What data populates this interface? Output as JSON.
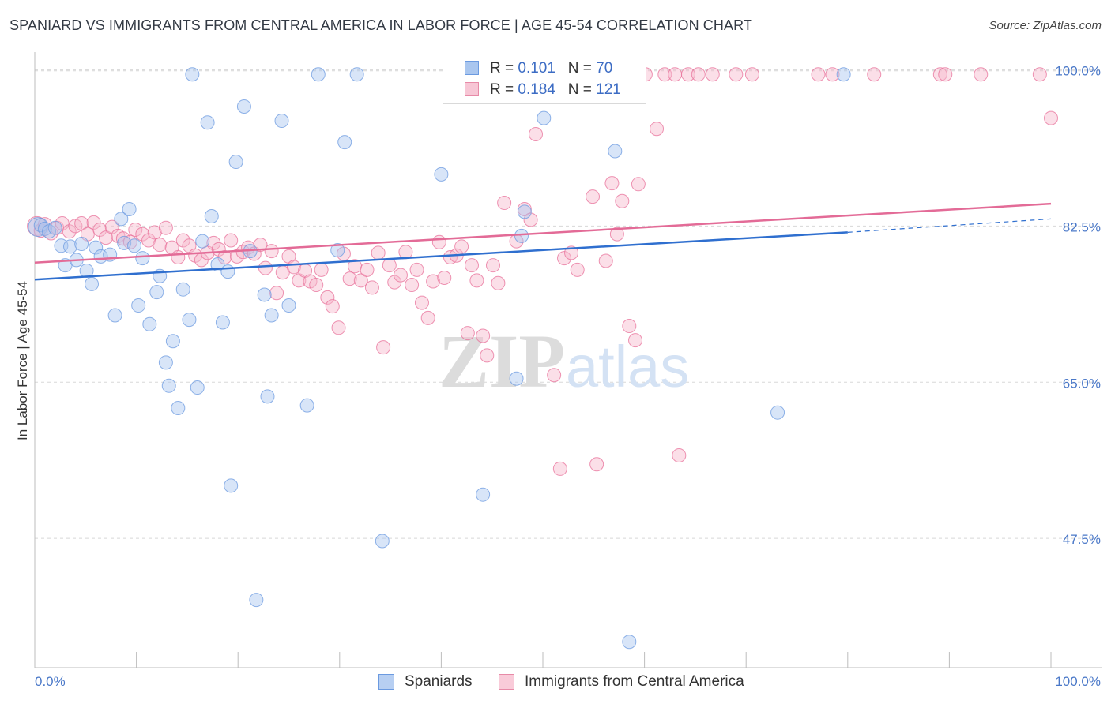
{
  "title": "SPANIARD VS IMMIGRANTS FROM CENTRAL AMERICA IN LABOR FORCE | AGE 45-54 CORRELATION CHART",
  "source": "Source: ZipAtlas.com",
  "legend": {
    "r_label": "R =",
    "n_label": "N =",
    "rows": [
      {
        "name": "Spaniards",
        "r": "0.101",
        "n": "70",
        "color": "#a9c6ef",
        "border": "#6b9ae0"
      },
      {
        "name": "Immigrants from Central America",
        "r": "0.184",
        "n": "121",
        "color": "#f7b8cc",
        "border": "#e78aa7"
      }
    ]
  },
  "chart_data": {
    "type": "scatter",
    "title": "SPANIARD VS IMMIGRANTS FROM CENTRAL AMERICA IN LABOR FORCE | AGE 45-54 CORRELATION CHART",
    "xlabel": "",
    "ylabel": "In Labor Force | Age 45-54",
    "xlim": [
      0,
      100
    ],
    "ylim": [
      33,
      102
    ],
    "x_tick_labels": [
      "0.0%",
      "100.0%"
    ],
    "y_ticks": [
      47.5,
      65.0,
      82.5,
      100.0
    ],
    "y_tick_labels": [
      "47.5%",
      "65.0%",
      "82.5%",
      "100.0%"
    ],
    "grid": true,
    "legend_position": "top-center",
    "watermark": "ZIPatlas",
    "series": [
      {
        "name": "Spaniards",
        "color": "#6b9ae0",
        "fill": "#a9c6ef",
        "trend": {
          "x": [
            0,
            80
          ],
          "y": [
            76.5,
            81.8
          ],
          "extend_to": [
            100,
            83.3
          ]
        },
        "points": [
          [
            0.3,
            82.4
          ],
          [
            0.6,
            82.6
          ],
          [
            1.0,
            82.2
          ],
          [
            1.4,
            81.9
          ],
          [
            2.0,
            82.3
          ],
          [
            2.6,
            80.3
          ],
          [
            3.0,
            78.1
          ],
          [
            3.5,
            80.2
          ],
          [
            4.1,
            78.7
          ],
          [
            4.6,
            80.5
          ],
          [
            5.1,
            77.5
          ],
          [
            5.6,
            76.0
          ],
          [
            6.0,
            80.1
          ],
          [
            6.5,
            79.1
          ],
          [
            7.4,
            79.3
          ],
          [
            7.9,
            72.5
          ],
          [
            8.5,
            83.3
          ],
          [
            8.8,
            80.6
          ],
          [
            9.3,
            84.4
          ],
          [
            9.8,
            80.3
          ],
          [
            10.2,
            73.6
          ],
          [
            10.6,
            78.9
          ],
          [
            11.3,
            71.5
          ],
          [
            12.0,
            75.1
          ],
          [
            12.3,
            76.9
          ],
          [
            12.9,
            67.2
          ],
          [
            13.2,
            64.6
          ],
          [
            13.6,
            69.6
          ],
          [
            14.1,
            62.1
          ],
          [
            14.6,
            75.4
          ],
          [
            15.2,
            72.0
          ],
          [
            15.5,
            99.5
          ],
          [
            16.0,
            64.4
          ],
          [
            16.5,
            80.8
          ],
          [
            17.0,
            94.1
          ],
          [
            17.4,
            83.6
          ],
          [
            18.0,
            78.2
          ],
          [
            18.5,
            71.7
          ],
          [
            19.0,
            77.4
          ],
          [
            19.3,
            53.4
          ],
          [
            19.8,
            89.7
          ],
          [
            20.6,
            95.9
          ],
          [
            21.2,
            79.7
          ],
          [
            21.8,
            40.6
          ],
          [
            22.6,
            74.8
          ],
          [
            22.9,
            63.4
          ],
          [
            23.3,
            72.5
          ],
          [
            24.3,
            94.3
          ],
          [
            25.0,
            73.6
          ],
          [
            26.8,
            62.4
          ],
          [
            27.9,
            99.5
          ],
          [
            29.8,
            79.8
          ],
          [
            30.5,
            91.9
          ],
          [
            31.7,
            99.5
          ],
          [
            34.2,
            47.2
          ],
          [
            40.0,
            88.3
          ],
          [
            41.0,
            99.5
          ],
          [
            44.1,
            52.4
          ],
          [
            47.4,
            65.4
          ],
          [
            47.9,
            81.4
          ],
          [
            48.2,
            84.1
          ],
          [
            50.1,
            94.6
          ],
          [
            52.2,
            99.5
          ],
          [
            57.1,
            90.9
          ],
          [
            58.5,
            35.9
          ],
          [
            73.1,
            61.6
          ],
          [
            79.6,
            99.5
          ]
        ]
      },
      {
        "name": "Immigrants from Central America",
        "color": "#e8709a",
        "fill": "#f7b8cc",
        "trend": {
          "x": [
            0,
            100
          ],
          "y": [
            78.4,
            85.0
          ]
        },
        "points": [
          [
            0.2,
            82.5
          ],
          [
            0.6,
            82.0
          ],
          [
            1.0,
            82.7
          ],
          [
            1.6,
            81.7
          ],
          [
            2.2,
            82.3
          ],
          [
            2.7,
            82.8
          ],
          [
            3.4,
            81.9
          ],
          [
            4.0,
            82.5
          ],
          [
            4.6,
            82.8
          ],
          [
            5.2,
            81.6
          ],
          [
            5.8,
            82.9
          ],
          [
            6.4,
            82.1
          ],
          [
            7.0,
            81.2
          ],
          [
            7.6,
            82.4
          ],
          [
            8.2,
            81.4
          ],
          [
            8.7,
            81.1
          ],
          [
            9.4,
            80.7
          ],
          [
            9.9,
            82.1
          ],
          [
            10.6,
            81.6
          ],
          [
            11.2,
            80.9
          ],
          [
            11.8,
            81.8
          ],
          [
            12.3,
            80.4
          ],
          [
            12.9,
            82.3
          ],
          [
            13.5,
            80.1
          ],
          [
            14.1,
            79.0
          ],
          [
            14.6,
            80.9
          ],
          [
            15.2,
            80.3
          ],
          [
            15.8,
            79.2
          ],
          [
            16.4,
            78.7
          ],
          [
            17.0,
            79.5
          ],
          [
            17.6,
            80.6
          ],
          [
            18.1,
            79.9
          ],
          [
            18.7,
            79.0
          ],
          [
            19.3,
            80.9
          ],
          [
            19.9,
            79.1
          ],
          [
            20.5,
            79.6
          ],
          [
            21.0,
            80.1
          ],
          [
            21.6,
            79.4
          ],
          [
            22.2,
            80.4
          ],
          [
            22.7,
            77.8
          ],
          [
            23.3,
            79.7
          ],
          [
            23.8,
            75.0
          ],
          [
            24.4,
            77.3
          ],
          [
            25.0,
            79.1
          ],
          [
            25.5,
            77.9
          ],
          [
            26.0,
            76.4
          ],
          [
            26.6,
            77.5
          ],
          [
            27.1,
            76.3
          ],
          [
            27.7,
            75.9
          ],
          [
            28.2,
            77.6
          ],
          [
            28.8,
            74.5
          ],
          [
            29.3,
            73.5
          ],
          [
            29.9,
            71.1
          ],
          [
            30.4,
            79.4
          ],
          [
            31.0,
            76.6
          ],
          [
            31.5,
            78.0
          ],
          [
            32.1,
            76.4
          ],
          [
            32.7,
            77.6
          ],
          [
            33.2,
            75.6
          ],
          [
            33.8,
            79.5
          ],
          [
            34.3,
            68.9
          ],
          [
            34.9,
            78.1
          ],
          [
            35.4,
            76.2
          ],
          [
            36.0,
            77.0
          ],
          [
            36.5,
            79.6
          ],
          [
            37.1,
            75.9
          ],
          [
            37.6,
            77.6
          ],
          [
            38.1,
            73.9
          ],
          [
            38.7,
            72.2
          ],
          [
            39.2,
            76.3
          ],
          [
            39.8,
            80.7
          ],
          [
            40.3,
            76.7
          ],
          [
            40.9,
            79.0
          ],
          [
            41.5,
            79.2
          ],
          [
            42.0,
            80.2
          ],
          [
            42.6,
            70.5
          ],
          [
            43.0,
            78.1
          ],
          [
            43.5,
            76.4
          ],
          [
            44.1,
            70.2
          ],
          [
            44.5,
            68.0
          ],
          [
            45.1,
            78.1
          ],
          [
            45.6,
            76.1
          ],
          [
            46.2,
            85.1
          ],
          [
            47.4,
            80.8
          ],
          [
            48.2,
            84.4
          ],
          [
            48.8,
            83.2
          ],
          [
            49.3,
            92.8
          ],
          [
            50.0,
            97.6
          ],
          [
            50.8,
            99.5
          ],
          [
            51.1,
            65.8
          ],
          [
            51.7,
            55.3
          ],
          [
            52.1,
            78.9
          ],
          [
            52.8,
            79.5
          ],
          [
            53.4,
            77.6
          ],
          [
            54.0,
            99.5
          ],
          [
            54.9,
            85.8
          ],
          [
            55.3,
            55.8
          ],
          [
            56.2,
            78.6
          ],
          [
            56.8,
            87.3
          ],
          [
            57.3,
            81.6
          ],
          [
            57.8,
            85.3
          ],
          [
            58.5,
            71.3
          ],
          [
            59.1,
            69.7
          ],
          [
            59.4,
            87.2
          ],
          [
            60.1,
            99.5
          ],
          [
            61.2,
            93.4
          ],
          [
            62.0,
            99.5
          ],
          [
            63.0,
            99.5
          ],
          [
            63.4,
            56.8
          ],
          [
            64.3,
            99.5
          ],
          [
            65.3,
            99.5
          ],
          [
            66.7,
            99.5
          ],
          [
            69.0,
            99.5
          ],
          [
            70.6,
            99.5
          ],
          [
            77.1,
            99.5
          ],
          [
            78.5,
            99.5
          ],
          [
            82.6,
            99.5
          ],
          [
            89.1,
            99.5
          ],
          [
            89.6,
            99.5
          ],
          [
            93.1,
            99.5
          ],
          [
            98.9,
            99.5
          ],
          [
            100.0,
            94.6
          ]
        ]
      }
    ]
  },
  "bottom_legend": [
    "Spaniards",
    "Immigrants from Central America"
  ]
}
